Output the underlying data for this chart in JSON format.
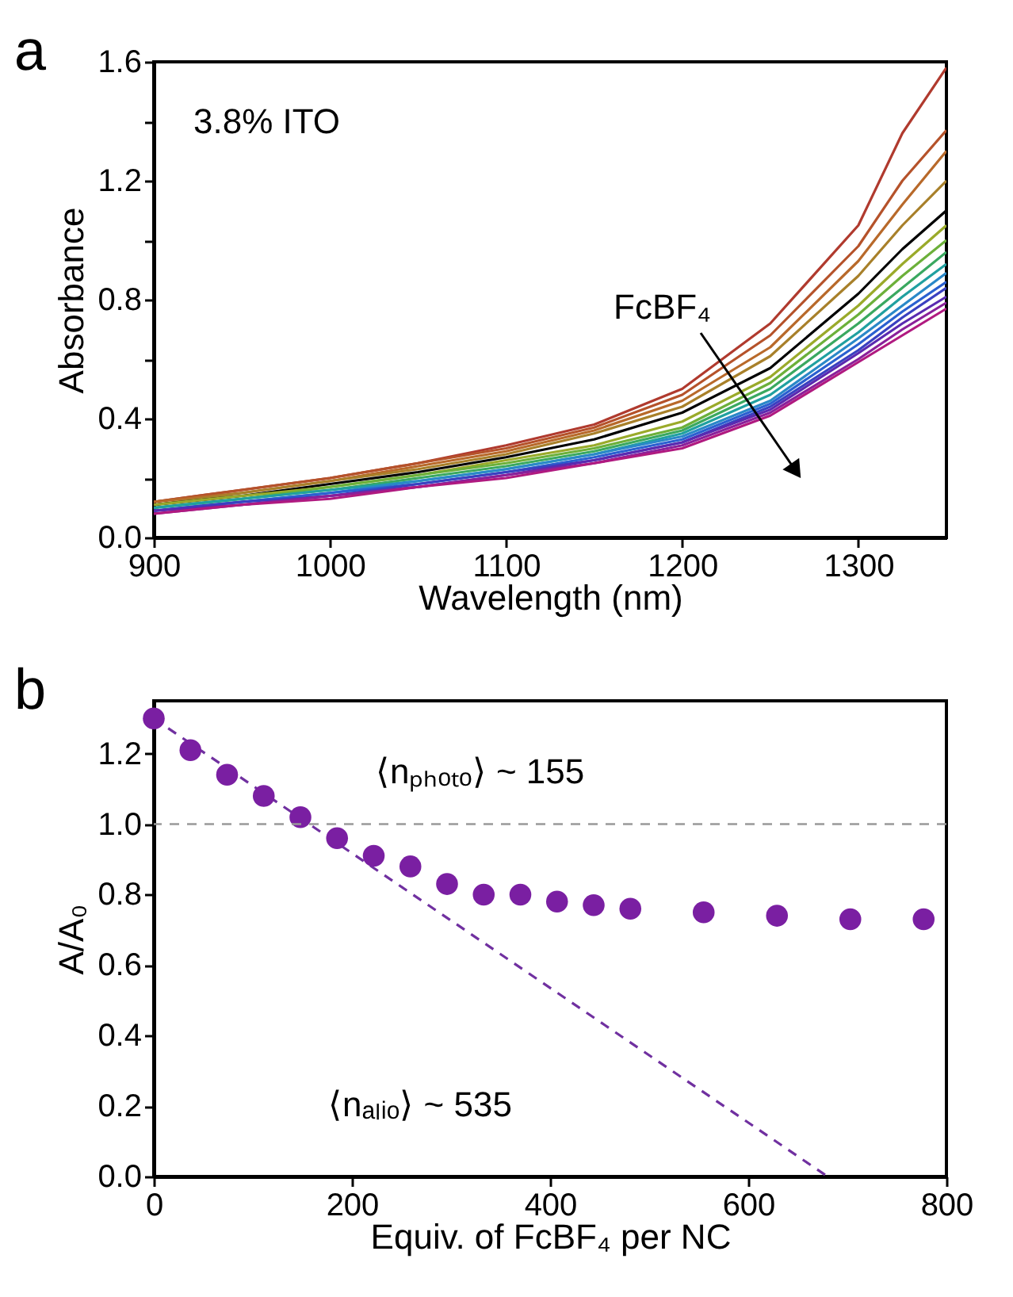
{
  "chart_data": [
    {
      "type": "line",
      "title": "a",
      "xlabel": "Wavelength (nm)",
      "ylabel": "Absorbance",
      "xlim": [
        900,
        1350
      ],
      "ylim": [
        0,
        1.6
      ],
      "xticks": [
        900,
        1000,
        1100,
        1200,
        1300
      ],
      "yticks": [
        {
          "value": 0,
          "label": "0.0"
        },
        {
          "value": 0.2,
          "label": null
        },
        0.4,
        {
          "value": 0.6,
          "label": null
        },
        0.8,
        {
          "value": 1.0,
          "label": null
        },
        1.2,
        {
          "value": 1.4,
          "label": null
        },
        1.6
      ],
      "grid": false,
      "x": [
        900,
        950,
        1000,
        1050,
        1100,
        1150,
        1200,
        1250,
        1300,
        1325,
        1350
      ],
      "annotations": [
        "3.8% ITO",
        "FcBF₄"
      ],
      "series": [
        {
          "color": "#b03a2e",
          "values": [
            0.12,
            0.16,
            0.2,
            0.25,
            0.31,
            0.38,
            0.5,
            0.72,
            1.05,
            1.36,
            1.58
          ]
        },
        {
          "color": "#b5522a",
          "values": [
            0.12,
            0.16,
            0.2,
            0.25,
            0.3,
            0.37,
            0.48,
            0.68,
            0.98,
            1.2,
            1.37
          ]
        },
        {
          "color": "#b8692a",
          "values": [
            0.12,
            0.15,
            0.19,
            0.24,
            0.29,
            0.36,
            0.46,
            0.64,
            0.93,
            1.12,
            1.3
          ]
        },
        {
          "color": "#a8802a",
          "values": [
            0.11,
            0.15,
            0.19,
            0.23,
            0.28,
            0.35,
            0.44,
            0.61,
            0.88,
            1.05,
            1.2
          ]
        },
        {
          "color": "#000000",
          "values": [
            0.11,
            0.14,
            0.18,
            0.22,
            0.27,
            0.33,
            0.42,
            0.57,
            0.82,
            0.97,
            1.1
          ]
        },
        {
          "color": "#9aaa2a",
          "values": [
            0.11,
            0.14,
            0.17,
            0.21,
            0.26,
            0.31,
            0.39,
            0.54,
            0.78,
            0.92,
            1.05
          ]
        },
        {
          "color": "#6cb03a",
          "values": [
            0.1,
            0.13,
            0.17,
            0.21,
            0.25,
            0.3,
            0.37,
            0.52,
            0.75,
            0.88,
            1.0
          ]
        },
        {
          "color": "#3aa860",
          "values": [
            0.1,
            0.13,
            0.16,
            0.2,
            0.24,
            0.29,
            0.36,
            0.5,
            0.72,
            0.84,
            0.96
          ]
        },
        {
          "color": "#20a0a0",
          "values": [
            0.1,
            0.13,
            0.16,
            0.19,
            0.23,
            0.28,
            0.35,
            0.48,
            0.69,
            0.81,
            0.92
          ]
        },
        {
          "color": "#2a88c8",
          "values": [
            0.09,
            0.12,
            0.15,
            0.19,
            0.23,
            0.28,
            0.34,
            0.46,
            0.67,
            0.78,
            0.89
          ]
        },
        {
          "color": "#2a60d0",
          "values": [
            0.09,
            0.12,
            0.15,
            0.18,
            0.22,
            0.27,
            0.33,
            0.45,
            0.65,
            0.76,
            0.86
          ]
        },
        {
          "color": "#3a40c0",
          "values": [
            0.09,
            0.12,
            0.14,
            0.18,
            0.22,
            0.26,
            0.32,
            0.44,
            0.63,
            0.74,
            0.84
          ]
        },
        {
          "color": "#5a2ab0",
          "values": [
            0.09,
            0.11,
            0.14,
            0.17,
            0.21,
            0.26,
            0.32,
            0.43,
            0.62,
            0.72,
            0.81
          ]
        },
        {
          "color": "#8a209a",
          "values": [
            0.08,
            0.11,
            0.14,
            0.17,
            0.21,
            0.25,
            0.31,
            0.42,
            0.6,
            0.7,
            0.79
          ]
        },
        {
          "color": "#b01a80",
          "values": [
            0.08,
            0.11,
            0.13,
            0.17,
            0.2,
            0.25,
            0.3,
            0.41,
            0.59,
            0.68,
            0.77
          ]
        }
      ]
    },
    {
      "type": "scatter",
      "title": "b",
      "xlabel": "Equiv. of FcBF₄ per NC",
      "ylabel": "A/A₀",
      "xlim": [
        0,
        800
      ],
      "ylim": [
        0,
        1.35
      ],
      "xticks": [
        0,
        200,
        400,
        600,
        800
      ],
      "yticks": [
        {
          "value": 0,
          "label": "0.0"
        },
        0.2,
        0.4,
        0.6,
        0.8,
        {
          "value": 1.0,
          "label": "1.0"
        },
        1.2
      ],
      "grid": false,
      "annotations": [
        "⟨nₚₕₒₜₒ⟩ ~ 155",
        "⟨nₐₗᵢₒ⟩ ~ 535"
      ],
      "ref_lines": [
        {
          "axis": "y",
          "value": 1.0,
          "color": "#999999",
          "line_style": "dashed"
        }
      ],
      "series": [
        {
          "type": "line",
          "color": "#7030a0",
          "line_style": "dashed",
          "x": [
            0,
            680
          ],
          "values": [
            1.3,
            0
          ]
        },
        {
          "type": "scatter",
          "color": "#7a1fa2",
          "marker": "circle",
          "x": [
            0,
            37,
            74,
            111,
            148,
            185,
            222,
            259,
            296,
            333,
            370,
            407,
            444,
            481,
            555,
            629,
            703,
            777
          ],
          "values": [
            1.3,
            1.21,
            1.14,
            1.08,
            1.02,
            0.96,
            0.91,
            0.88,
            0.83,
            0.8,
            0.8,
            0.78,
            0.77,
            0.76,
            0.75,
            0.74,
            0.73,
            0.73
          ]
        }
      ]
    }
  ]
}
